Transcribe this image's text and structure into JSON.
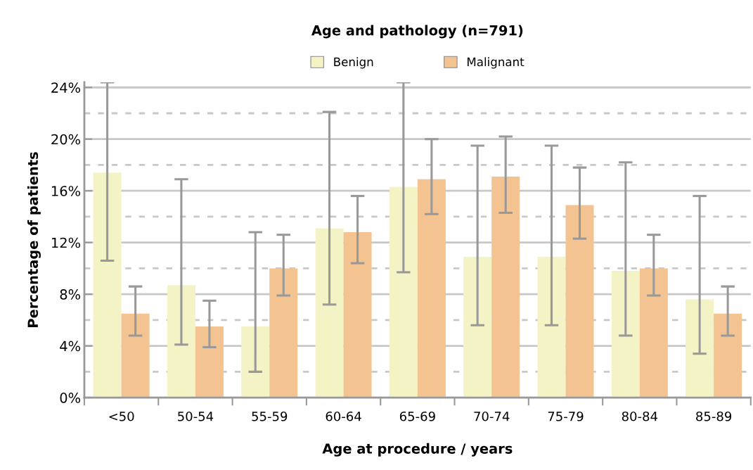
{
  "chart_data": {
    "type": "bar",
    "title": "Age and pathology (n=791)",
    "xlabel": "Age at procedure / years",
    "ylabel": "Percentage of patients",
    "categories": [
      "<50",
      "50-54",
      "55-59",
      "60-64",
      "65-69",
      "70-74",
      "75-79",
      "80-84",
      "85-89"
    ],
    "series": [
      {
        "name": "Benign",
        "color": "#f3f3c6",
        "values": [
          17.4,
          8.7,
          5.5,
          13.1,
          16.3,
          10.9,
          10.9,
          9.8,
          7.6
        ],
        "errors": [
          [
            10.6,
            24.4
          ],
          [
            4.1,
            16.9
          ],
          [
            2.0,
            12.8
          ],
          [
            7.2,
            22.1
          ],
          [
            9.7,
            24.4
          ],
          [
            5.6,
            19.5
          ],
          [
            5.6,
            19.5
          ],
          [
            4.8,
            18.2
          ],
          [
            3.4,
            15.6
          ]
        ]
      },
      {
        "name": "Malignant",
        "color": "#f3c491",
        "values": [
          6.5,
          5.5,
          10.0,
          12.8,
          16.9,
          17.1,
          14.9,
          10.0,
          6.5
        ],
        "errors": [
          [
            4.8,
            8.6
          ],
          [
            3.9,
            7.5
          ],
          [
            7.9,
            12.6
          ],
          [
            10.4,
            15.6
          ],
          [
            14.2,
            20.0
          ],
          [
            14.3,
            20.2
          ],
          [
            12.3,
            17.8
          ],
          [
            7.9,
            12.6
          ],
          [
            4.8,
            8.6
          ]
        ]
      }
    ],
    "ylim": [
      0,
      24.4
    ],
    "yticks": [
      {
        "value": 0,
        "label": "0%"
      },
      {
        "value": 4,
        "label": "4%"
      },
      {
        "value": 8,
        "label": "8%"
      },
      {
        "value": 12,
        "label": "12%"
      },
      {
        "value": 16,
        "label": "16%"
      },
      {
        "value": 20,
        "label": "20%"
      },
      {
        "value": 24,
        "label": "24%"
      }
    ],
    "grid": "y",
    "legend": "top"
  }
}
